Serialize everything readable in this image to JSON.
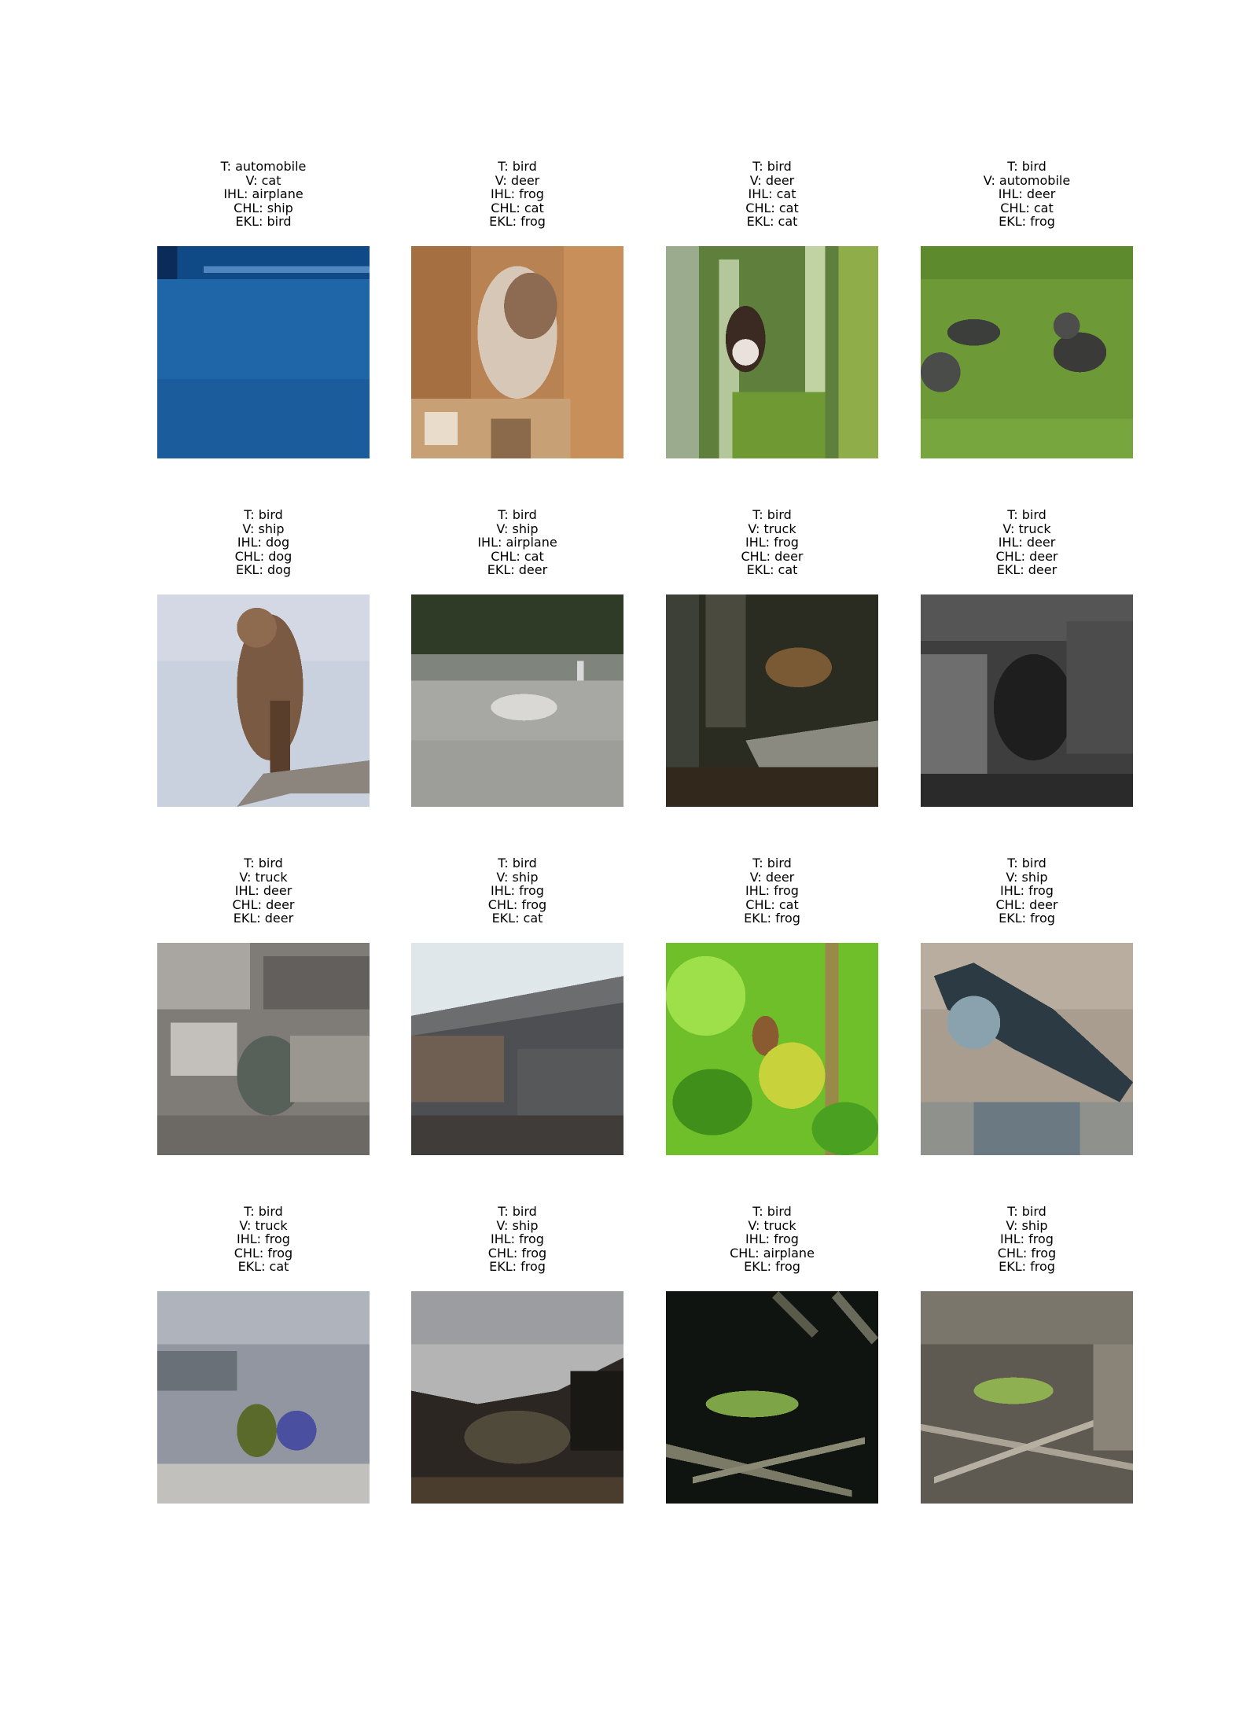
{
  "panels": [
    {
      "scene": "blue-water",
      "lines": [
        "T: automobile",
        "V: cat",
        "IHL: airplane",
        "CHL: ship",
        "EKL: bird"
      ]
    },
    {
      "scene": "brown-bird",
      "lines": [
        "T: bird",
        "V: deer",
        "IHL: frog",
        "CHL: cat",
        "EKL: frog"
      ]
    },
    {
      "scene": "grass-bird",
      "lines": [
        "T: bird",
        "V: deer",
        "IHL: cat",
        "CHL: cat",
        "EKL: cat"
      ]
    },
    {
      "scene": "green-field-birds",
      "lines": [
        "T: bird",
        "V: automobile",
        "IHL: deer",
        "CHL: cat",
        "EKL: frog"
      ]
    },
    {
      "scene": "perched-hawk",
      "lines": [
        "T: bird",
        "V: ship",
        "IHL: dog",
        "CHL: dog",
        "EKL: dog"
      ]
    },
    {
      "scene": "gray-water-bird",
      "lines": [
        "T: bird",
        "V: ship",
        "IHL: airplane",
        "CHL: cat",
        "EKL: deer"
      ]
    },
    {
      "scene": "dark-log-bird",
      "lines": [
        "T: bird",
        "V: truck",
        "IHL: frog",
        "CHL: deer",
        "EKL: cat"
      ]
    },
    {
      "scene": "grayscale-bird",
      "lines": [
        "T: bird",
        "V: truck",
        "IHL: deer",
        "CHL: deer",
        "EKL: deer"
      ]
    },
    {
      "scene": "rocky-ground",
      "lines": [
        "T: bird",
        "V: truck",
        "IHL: deer",
        "CHL: deer",
        "EKL: deer"
      ]
    },
    {
      "scene": "hillside-sky",
      "lines": [
        "T: bird",
        "V: ship",
        "IHL: frog",
        "CHL: frog",
        "EKL: cat"
      ]
    },
    {
      "scene": "green-leaves",
      "lines": [
        "T: bird",
        "V: deer",
        "IHL: frog",
        "CHL: cat",
        "EKL: frog"
      ]
    },
    {
      "scene": "gravel-bird",
      "lines": [
        "T: bird",
        "V: ship",
        "IHL: frog",
        "CHL: deer",
        "EKL: frog"
      ]
    },
    {
      "scene": "pebbles-blue-bird",
      "lines": [
        "T: bird",
        "V: truck",
        "IHL: frog",
        "CHL: frog",
        "EKL: cat"
      ]
    },
    {
      "scene": "dark-shore",
      "lines": [
        "T: bird",
        "V: ship",
        "IHL: frog",
        "CHL: frog",
        "EKL: frog"
      ]
    },
    {
      "scene": "dark-twigs-green",
      "lines": [
        "T: bird",
        "V: truck",
        "IHL: frog",
        "CHL: airplane",
        "EKL: frog"
      ]
    },
    {
      "scene": "twigs-green",
      "lines": [
        "T: bird",
        "V: ship",
        "IHL: frog",
        "CHL: frog",
        "EKL: frog"
      ]
    }
  ]
}
